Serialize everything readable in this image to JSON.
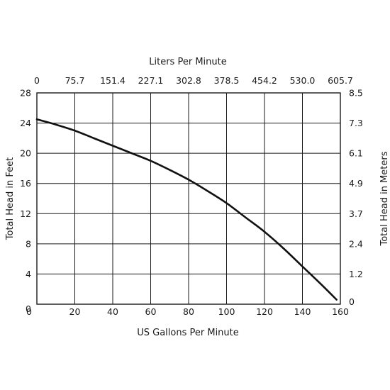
{
  "chart_data": {
    "type": "line",
    "title": "",
    "xlabel": "US Gallons Per Minute",
    "ylabel": "Total Head in Feet",
    "x2label": "Liters Per Minute",
    "y2label": "Total Head in Meters",
    "xlim": [
      0,
      160
    ],
    "ylim": [
      0,
      28
    ],
    "grid": true,
    "x_ticks": [
      "0",
      "20",
      "40",
      "60",
      "80",
      "100",
      "120",
      "140",
      "160"
    ],
    "y_ticks": [
      "0",
      "4",
      "8",
      "12",
      "16",
      "20",
      "24",
      "28"
    ],
    "x2_ticks": [
      "0",
      "75.7",
      "151.4",
      "227.1",
      "302.8",
      "378.5",
      "454.2",
      "530.0",
      "605.7"
    ],
    "y2_ticks": [
      "0",
      "1.2",
      "2.4",
      "3.7",
      "4.9",
      "6.1",
      "7.3",
      "8.5"
    ],
    "series": [
      {
        "x": [
          0,
          10,
          20,
          30,
          40,
          50,
          60,
          70,
          80,
          90,
          100,
          110,
          120,
          130,
          140,
          150,
          158
        ],
        "y": [
          24.5,
          23.8,
          23.0,
          22.0,
          21.0,
          20.0,
          19.0,
          17.8,
          16.5,
          15.0,
          13.4,
          11.5,
          9.6,
          7.4,
          5.0,
          2.6,
          0.6
        ]
      }
    ],
    "colors": {
      "line": "#111111",
      "grid": "#1a1a1a",
      "text": "#1a1a1a"
    }
  }
}
